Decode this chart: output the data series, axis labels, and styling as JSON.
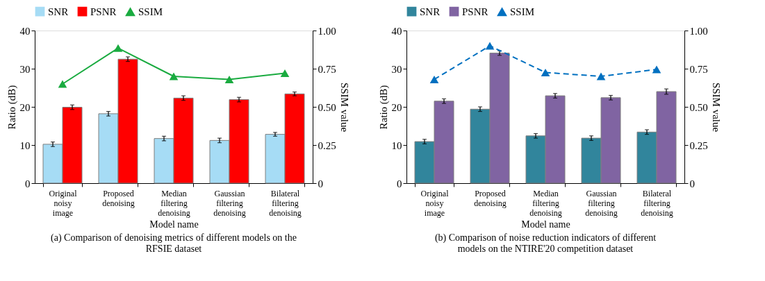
{
  "chart_data": [
    {
      "type": "bar",
      "categories": [
        "Original noisy image",
        "Proposed denoising",
        "Median filtering denoising",
        "Gaussian filtering denoising",
        "Bilateral filtering denoising"
      ],
      "xlabel": "Model name",
      "ylabel": "Ratio (dB)",
      "y2label": "SSIM value",
      "ylim": [
        0,
        40
      ],
      "yticks": [
        0,
        10,
        20,
        30,
        40
      ],
      "y2lim": [
        0,
        1
      ],
      "y2ticks": [
        {
          "value": 0,
          "label": "0"
        },
        {
          "value": 0.25,
          "label": "0.25"
        },
        {
          "value": 0.5,
          "label": "0.50"
        },
        {
          "value": 0.75,
          "label": "0.75"
        },
        {
          "value": 1,
          "label": "1.00"
        }
      ],
      "legend": "top",
      "grid": false,
      "annotations": [
        "(a) Comparison of denoising metrics of different models on the RFSIE dataset"
      ],
      "series": [
        {
          "name": "SNR",
          "color": "#a6dcf5",
          "values": [
            10.2,
            18.2,
            11.7,
            11.2,
            12.8
          ],
          "errors": [
            0.6,
            0.6,
            0.6,
            0.6,
            0.5
          ]
        },
        {
          "name": "PSNR",
          "color": "#ff0000",
          "values": [
            19.9,
            32.5,
            22.3,
            21.9,
            23.4
          ],
          "errors": [
            0.6,
            0.6,
            0.6,
            0.6,
            0.5
          ]
        },
        {
          "name": "SSIM",
          "type": "line",
          "axis": "y2",
          "color": "#1aab40",
          "marker": "triangle",
          "line_style": "solid",
          "values": [
            0.65,
            0.885,
            0.7,
            0.68,
            0.72
          ]
        }
      ]
    },
    {
      "type": "bar",
      "categories": [
        "Original noisy image",
        "Proposed denoising",
        "Median filtering denoising",
        "Gaussian filtering denoising",
        "Bilateral filtering denoising"
      ],
      "xlabel": "Model name",
      "ylabel": "Ratio (dB)",
      "y2label": "SSIM value",
      "ylim": [
        0,
        40
      ],
      "yticks": [
        0,
        10,
        20,
        30,
        40
      ],
      "y2lim": [
        0,
        1
      ],
      "y2ticks": [
        {
          "value": 0,
          "label": "0"
        },
        {
          "value": 0.25,
          "label": "0.25"
        },
        {
          "value": 0.5,
          "label": "0.50"
        },
        {
          "value": 0.75,
          "label": "0.75"
        },
        {
          "value": 1,
          "label": "1.00"
        }
      ],
      "legend": "top",
      "grid": false,
      "annotations": [
        "(b) Comparison of noise reduction indicators of different models on the NTIRE'20 competition dataset"
      ],
      "series": [
        {
          "name": "SNR",
          "color": "#31859c",
          "values": [
            10.9,
            19.4,
            12.4,
            11.8,
            13.4
          ],
          "errors": [
            0.6,
            0.6,
            0.6,
            0.6,
            0.6
          ]
        },
        {
          "name": "PSNR",
          "color": "#8064a2",
          "values": [
            21.5,
            34.1,
            22.9,
            22.4,
            24.0
          ],
          "errors": [
            0.6,
            0.6,
            0.6,
            0.6,
            0.7
          ]
        },
        {
          "name": "SSIM",
          "type": "line",
          "axis": "y2",
          "color": "#0070c0",
          "marker": "triangle",
          "line_style": "dashed",
          "values": [
            0.68,
            0.9,
            0.725,
            0.7,
            0.745
          ]
        }
      ]
    }
  ]
}
